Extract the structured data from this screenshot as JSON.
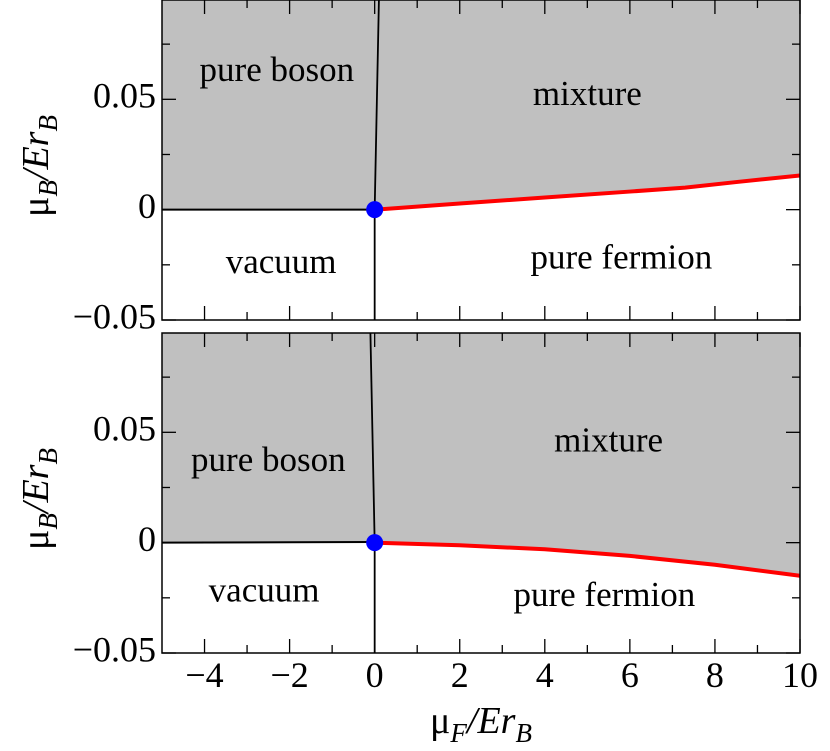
{
  "chart_data": [
    {
      "type": "area",
      "panel": "top",
      "title": "",
      "xlabel": "",
      "ylabel": {
        "main": "μ",
        "sub1": "B",
        "mid": "/Er",
        "sub2": "B"
      },
      "xlim": [
        -5,
        10
      ],
      "ylim": [
        -0.05,
        0.095
      ],
      "y_ticks": [
        {
          "value": 0.05,
          "label": "0.05"
        },
        {
          "value": 0,
          "label": "0"
        },
        {
          "value": -0.05,
          "label": "−0.05"
        }
      ],
      "x_ticks": [],
      "grid": false,
      "regions": [
        {
          "label": "pure boson",
          "x": -2.3,
          "y": 0.062,
          "shaded": true
        },
        {
          "label": "mixture",
          "x": 5.0,
          "y": 0.051,
          "shaded": true
        },
        {
          "label": "vacuum",
          "x": -2.2,
          "y": -0.025,
          "shaded": false
        },
        {
          "label": "pure fermion",
          "x": 5.8,
          "y": -0.023,
          "shaded": false
        }
      ],
      "boson_boundary": {
        "x": [
          -5,
          0
        ],
        "y": [
          0,
          0
        ]
      },
      "vertical_boundary": {
        "x": [
          0,
          0.1
        ],
        "y": [
          0,
          0.095
        ]
      },
      "fermion_boundary": {
        "x": [
          0,
          2,
          4,
          6,
          7.3,
          8.5,
          10
        ],
        "y": [
          0,
          0.0028,
          0.0055,
          0.0082,
          0.01,
          0.0125,
          0.0155
        ]
      },
      "critical_point": {
        "x": 0,
        "y": 0
      }
    },
    {
      "type": "area",
      "panel": "bottom",
      "title": "",
      "xlabel": {
        "main": "μ",
        "sub1": "F",
        "mid": "/Er",
        "sub2": "B"
      },
      "ylabel": {
        "main": "μ",
        "sub1": "B",
        "mid": "/Er",
        "sub2": "B"
      },
      "xlim": [
        -5,
        10
      ],
      "ylim": [
        -0.05,
        0.095
      ],
      "x_ticks": [
        {
          "value": -4,
          "label": "−4"
        },
        {
          "value": -2,
          "label": "−2"
        },
        {
          "value": 0,
          "label": "0"
        },
        {
          "value": 2,
          "label": "2"
        },
        {
          "value": 4,
          "label": "4"
        },
        {
          "value": 6,
          "label": "6"
        },
        {
          "value": 8,
          "label": "8"
        },
        {
          "value": 10,
          "label": "10"
        }
      ],
      "y_ticks": [
        {
          "value": 0.05,
          "label": "0.05"
        },
        {
          "value": 0,
          "label": "0"
        },
        {
          "value": -0.05,
          "label": "−0.05"
        }
      ],
      "grid": false,
      "regions": [
        {
          "label": "pure boson",
          "x": -2.5,
          "y": 0.036,
          "shaded": true
        },
        {
          "label": "mixture",
          "x": 5.5,
          "y": 0.045,
          "shaded": true
        },
        {
          "label": "vacuum",
          "x": -2.6,
          "y": -0.023,
          "shaded": false
        },
        {
          "label": "pure fermion",
          "x": 5.4,
          "y": -0.025,
          "shaded": false
        }
      ],
      "boson_boundary": {
        "x": [
          -5,
          -2,
          0
        ],
        "y": [
          0,
          0.0002,
          0.0003
        ]
      },
      "vertical_boundary": {
        "x": [
          0,
          -0.1
        ],
        "y": [
          0,
          0.095
        ]
      },
      "fermion_boundary": {
        "x": [
          0,
          2,
          4,
          6,
          8,
          10
        ],
        "y": [
          0,
          -0.0012,
          -0.003,
          -0.006,
          -0.01,
          -0.015
        ]
      },
      "critical_point": {
        "x": 0,
        "y": 0
      }
    }
  ],
  "style": {
    "shade": "#c0c0c0",
    "boundary_color": "#000000",
    "fermion_line_color": "#ff0000",
    "point_color": "#0000ff"
  }
}
